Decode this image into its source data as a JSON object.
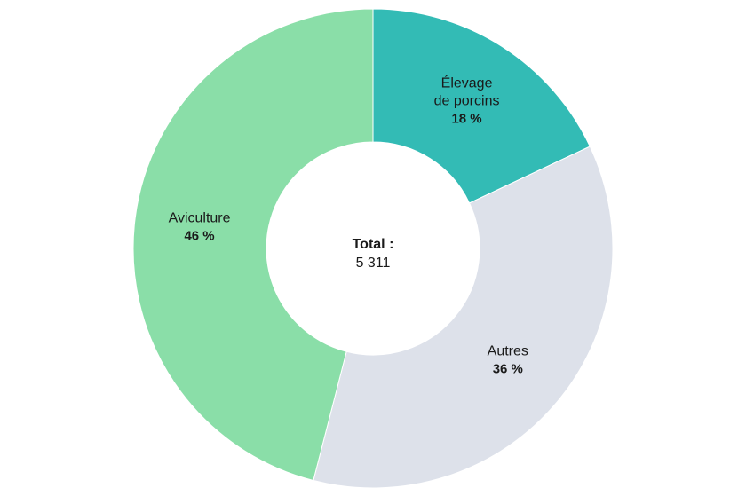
{
  "chart_data": {
    "type": "pie",
    "variant": "donut",
    "center": {
      "label": "Total :",
      "value": "5 311"
    },
    "slices": [
      {
        "label_lines": [
          "Élevage",
          "de porcins"
        ],
        "percent_label": "18 %",
        "value": 18,
        "color": "#33bbb5"
      },
      {
        "label_lines": [
          "Autres"
        ],
        "percent_label": "36 %",
        "value": 36,
        "color": "#dde1ea"
      },
      {
        "label_lines": [
          "Aviculture"
        ],
        "percent_label": "46 %",
        "value": 46,
        "color": "#8ade a8"
      }
    ]
  }
}
